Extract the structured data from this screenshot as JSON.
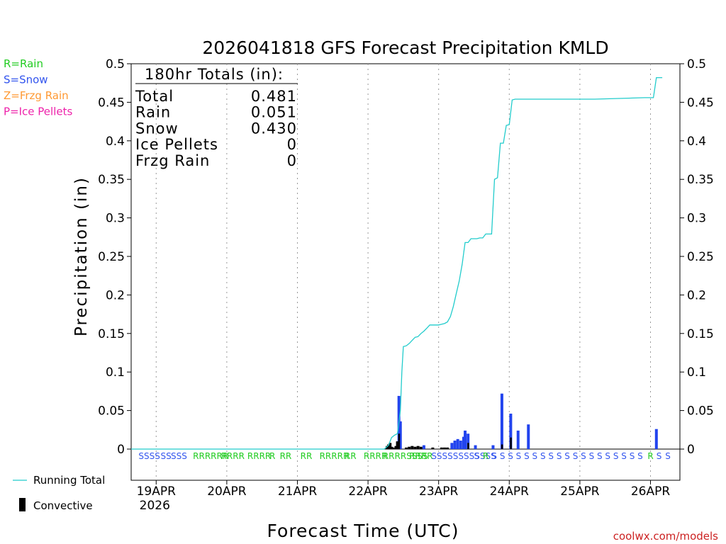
{
  "chart_data": {
    "type": "bar",
    "title": "2026041818 GFS Forecast Precipitation KMLD",
    "xlabel": "Forecast Time (UTC)",
    "ylabel": "Precipitation (in)",
    "ylim": [
      0,
      0.5
    ],
    "xlim_hours": [
      -2.5,
      184
    ],
    "yticks": [
      "0",
      "0.05",
      "0.1",
      "0.15",
      "0.2",
      "0.25",
      "0.3",
      "0.35",
      "0.4",
      "0.45",
      "0.5"
    ],
    "xticks": [
      {
        "label": "19APR",
        "sub": "2026",
        "hour": 6
      },
      {
        "label": "20APR",
        "hour": 30
      },
      {
        "label": "21APR",
        "hour": 54
      },
      {
        "label": "22APR",
        "hour": 78
      },
      {
        "label": "23APR",
        "hour": 102
      },
      {
        "label": "24APR",
        "hour": 126
      },
      {
        "label": "25APR",
        "hour": 150
      },
      {
        "label": "26APR",
        "hour": 174
      }
    ],
    "type_legend": [
      {
        "label": "R=Rain",
        "color": "#22cc22"
      },
      {
        "label": "S=Snow",
        "color": "#3355ee"
      },
      {
        "label": "Z=Frzg Rain",
        "color": "#ff9933"
      },
      {
        "label": "P=Ice Pellets",
        "color": "#ee22aa"
      }
    ],
    "series_legend": [
      {
        "name": "Running Total",
        "color": "#22cccc"
      },
      {
        "name": "Convective",
        "color": "#000000"
      }
    ],
    "totals": {
      "header": "180hr Totals (in):",
      "rows": [
        {
          "label": "Total",
          "value": "0.481"
        },
        {
          "label": "Rain",
          "value": "0.051"
        },
        {
          "label": "Snow",
          "value": "0.430"
        },
        {
          "label": "Ice Pellets",
          "value": "0"
        },
        {
          "label": "Frzg Rain",
          "value": "0"
        }
      ]
    },
    "running_total": [
      [
        -2.5,
        0
      ],
      [
        83.5,
        0
      ],
      [
        85,
        0.005
      ],
      [
        86,
        0.015
      ],
      [
        87,
        0.018
      ],
      [
        88,
        0.02
      ],
      [
        89,
        0.05
      ],
      [
        89.5,
        0.1
      ],
      [
        90,
        0.133
      ],
      [
        91,
        0.134
      ],
      [
        92,
        0.137
      ],
      [
        93,
        0.141
      ],
      [
        94,
        0.145
      ],
      [
        95,
        0.146
      ],
      [
        96,
        0.15
      ],
      [
        97,
        0.153
      ],
      [
        98,
        0.157
      ],
      [
        99,
        0.161
      ],
      [
        100,
        0.161
      ],
      [
        102,
        0.161
      ],
      [
        103,
        0.162
      ],
      [
        104,
        0.163
      ],
      [
        105,
        0.165
      ],
      [
        106,
        0.172
      ],
      [
        107,
        0.185
      ],
      [
        108,
        0.202
      ],
      [
        109,
        0.218
      ],
      [
        110,
        0.24
      ],
      [
        111,
        0.268
      ],
      [
        112,
        0.268
      ],
      [
        113,
        0.273
      ],
      [
        115,
        0.273
      ],
      [
        116,
        0.274
      ],
      [
        117,
        0.274
      ],
      [
        118,
        0.279
      ],
      [
        120,
        0.279
      ],
      [
        121,
        0.35
      ],
      [
        122,
        0.352
      ],
      [
        123,
        0.397
      ],
      [
        124,
        0.397
      ],
      [
        125,
        0.42
      ],
      [
        126,
        0.421
      ],
      [
        127,
        0.453
      ],
      [
        128,
        0.454
      ],
      [
        140,
        0.454
      ],
      [
        155,
        0.454
      ],
      [
        172,
        0.456
      ],
      [
        175,
        0.456
      ],
      [
        176,
        0.482
      ],
      [
        177,
        0.482
      ],
      [
        178,
        0.482
      ]
    ],
    "bars": [
      {
        "hour": 84.5,
        "value": 0.004,
        "color": "#000000"
      },
      {
        "hour": 85.0,
        "value": 0.006,
        "color": "#000000"
      },
      {
        "hour": 85.5,
        "value": 0.008,
        "color": "#000000"
      },
      {
        "hour": 86.0,
        "value": 0.003,
        "color": "#000000"
      },
      {
        "hour": 86.5,
        "value": 0.002,
        "color": "#000000"
      },
      {
        "hour": 87.5,
        "value": 0.004,
        "color": "#000000"
      },
      {
        "hour": 88.0,
        "value": 0.01,
        "color": "#000000"
      },
      {
        "hour": 88.5,
        "value": 0.069,
        "color": "#2244ee"
      },
      {
        "hour": 89.0,
        "value": 0.036,
        "color": "#2244ee"
      },
      {
        "hour": 91.0,
        "value": 0.002,
        "color": "#000000"
      },
      {
        "hour": 92.0,
        "value": 0.003,
        "color": "#000000"
      },
      {
        "hour": 93.0,
        "value": 0.004,
        "color": "#000000"
      },
      {
        "hour": 94.0,
        "value": 0.003,
        "color": "#000000"
      },
      {
        "hour": 95.0,
        "value": 0.004,
        "color": "#000000"
      },
      {
        "hour": 96.0,
        "value": 0.003,
        "color": "#000000"
      },
      {
        "hour": 97.0,
        "value": 0.005,
        "color": "#2244ee"
      },
      {
        "hour": 100.0,
        "value": 0.002,
        "color": "#000000"
      },
      {
        "hour": 103.0,
        "value": 0.002,
        "color": "#000000"
      },
      {
        "hour": 104.0,
        "value": 0.002,
        "color": "#000000"
      },
      {
        "hour": 105.0,
        "value": 0.002,
        "color": "#000000"
      },
      {
        "hour": 106.5,
        "value": 0.008,
        "color": "#2244ee"
      },
      {
        "hour": 107.5,
        "value": 0.011,
        "color": "#2244ee"
      },
      {
        "hour": 108.5,
        "value": 0.013,
        "color": "#2244ee"
      },
      {
        "hour": 109.5,
        "value": 0.011,
        "color": "#2244ee"
      },
      {
        "hour": 110.5,
        "value": 0.016,
        "color": "#2244ee"
      },
      {
        "hour": 111.0,
        "value": 0.024,
        "color": "#2244ee"
      },
      {
        "hour": 112.0,
        "value": 0.02,
        "color": "#2244ee"
      },
      {
        "hour": 114.5,
        "value": 0.005,
        "color": "#2244ee"
      },
      {
        "hour": 120.5,
        "value": 0.005,
        "color": "#2244ee"
      },
      {
        "hour": 123.5,
        "value": 0.072,
        "color": "#2244ee"
      },
      {
        "hour": 126.5,
        "value": 0.046,
        "color": "#2244ee"
      },
      {
        "hour": 129.0,
        "value": 0.024,
        "color": "#2244ee"
      },
      {
        "hour": 132.5,
        "value": 0.032,
        "color": "#2244ee"
      },
      {
        "hour": 176.0,
        "value": 0.026,
        "color": "#2244ee"
      }
    ],
    "conv_bars": [
      {
        "hour": 85.0,
        "value": 0.006
      },
      {
        "hour": 88.0,
        "value": 0.01
      },
      {
        "hour": 88.5,
        "value": 0.02
      },
      {
        "hour": 112.0,
        "value": 0.008
      },
      {
        "hour": 123.5,
        "value": 0.006
      },
      {
        "hour": 126.5,
        "value": 0.015
      }
    ],
    "ptype_labels": [
      {
        "hour": 0.0,
        "text": "SSSS",
        "color": "#3355ee"
      },
      {
        "hour": 7.5,
        "text": "SS",
        "color": "#3355ee"
      },
      {
        "hour": 11.0,
        "text": "SSS",
        "color": "#3355ee"
      },
      {
        "hour": 18.5,
        "text": "RRRRRR",
        "color": "#22cc22"
      },
      {
        "hour": 28.0,
        "text": "RRRR",
        "color": "#22cc22"
      },
      {
        "hour": 37.0,
        "text": "RRRR",
        "color": "#22cc22"
      },
      {
        "hour": 44.5,
        "text": "R",
        "color": "#22cc22"
      },
      {
        "hour": 48.0,
        "text": "RR",
        "color": "#22cc22"
      },
      {
        "hour": 55.0,
        "text": "RR",
        "color": "#22cc22"
      },
      {
        "hour": 61.5,
        "text": "RRRRR",
        "color": "#22cc22"
      },
      {
        "hour": 70.0,
        "text": "RR",
        "color": "#22cc22"
      },
      {
        "hour": 76.5,
        "text": "RRRR",
        "color": "#22cc22"
      },
      {
        "hour": 83.0,
        "text": "RRRRSSSS",
        "color": "#22cc22"
      },
      {
        "hour": 92.0,
        "text": "RRRR",
        "color": "#22cc22"
      },
      {
        "hour": 99.5,
        "text": "SSSSSSSSSSSS",
        "color": "#3355ee"
      },
      {
        "hour": 114.0,
        "text": "S",
        "color": "#3355ee"
      },
      {
        "hour": 117.0,
        "text": "R",
        "color": "#22cc22"
      },
      {
        "hour": 120.0,
        "text": "S S S S S S S S S S S S S S S S S S S",
        "color": "#3355ee"
      },
      {
        "hour": 176.0,
        "text": "S",
        "color": "#3355ee"
      },
      {
        "hour": 173.0,
        "text": "R",
        "color": "#22cc22"
      },
      {
        "hour": 179.0,
        "text": "S",
        "color": "#3355ee"
      }
    ]
  },
  "footer": {
    "source": "coolwx.com/models"
  }
}
